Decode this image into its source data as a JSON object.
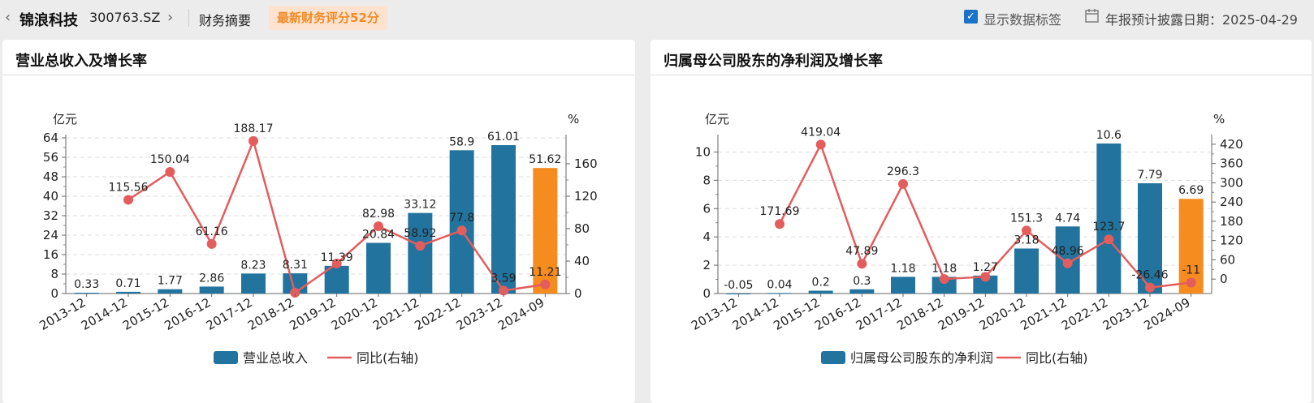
{
  "header": {
    "back_arrow": "‹",
    "stock_name": "锦浪科技",
    "stock_code": "300763.SZ",
    "forward_arrow": "›",
    "summary_tab": "财务摘要",
    "score_badge": "最新财务评分52分",
    "show_labels": "显示数据标签",
    "show_labels_checked": true,
    "report_date": "年报预计披露日期：2025-04-29"
  },
  "colors": {
    "bar": "#22739e",
    "bar_last": "#f68b1f",
    "line": "#e35d5d",
    "accent": "#1a73c8"
  },
  "panels": [
    {
      "title": "营业总收入及增长率"
    },
    {
      "title": "归属母公司股东的净利润及增长率"
    }
  ],
  "chart_data": [
    {
      "type": "bar",
      "title": "营业总收入及增长率",
      "left_unit": "亿元",
      "right_unit": "%",
      "categories": [
        "2013-12",
        "2014-12",
        "2015-12",
        "2016-12",
        "2017-12",
        "2018-12",
        "2019-12",
        "2020-12",
        "2021-12",
        "2022-12",
        "2023-12",
        "2024-09"
      ],
      "series": [
        {
          "name": "营业总收入",
          "type": "bar",
          "axis": "left",
          "values": [
            0.33,
            0.71,
            1.77,
            2.86,
            8.23,
            8.31,
            11.39,
            20.84,
            33.12,
            58.9,
            61.01,
            51.62
          ],
          "labels": [
            "0.33",
            "0.71",
            "1.77",
            "2.86",
            "8.23",
            "8.31",
            "11.39",
            "20.84",
            "33.12",
            "58.9",
            "61.01",
            "51.62"
          ]
        },
        {
          "name": "同比(右轴)",
          "type": "line",
          "axis": "right",
          "values": [
            null,
            115.56,
            150.04,
            61.16,
            188.17,
            0.97,
            37.06,
            82.98,
            58.92,
            77.8,
            3.59,
            11.21
          ],
          "labels": [
            "",
            "115.56",
            "150.04",
            "61.16",
            "188.17",
            "",
            "",
            "82.98",
            "58.92",
            "77.8",
            "3.59",
            "11.21"
          ]
        }
      ],
      "y_left": {
        "min": 0,
        "max": 64,
        "ticks": [
          0,
          8,
          16,
          24,
          32,
          40,
          48,
          56,
          64
        ]
      },
      "y_right": {
        "min": 0,
        "max": 192,
        "ticks": [
          0,
          40,
          80,
          120,
          160
        ]
      },
      "grid": true,
      "legend_position": "bottom"
    },
    {
      "type": "bar",
      "title": "归属母公司股东的净利润及增长率",
      "left_unit": "亿元",
      "right_unit": "%",
      "categories": [
        "2013-12",
        "2014-12",
        "2015-12",
        "2016-12",
        "2017-12",
        "2018-12",
        "2019-12",
        "2020-12",
        "2021-12",
        "2022-12",
        "2023-12",
        "2024-09"
      ],
      "series": [
        {
          "name": "归属母公司股东的净利润",
          "type": "bar",
          "axis": "left",
          "values": [
            -0.05,
            0.04,
            0.2,
            0.3,
            1.18,
            1.18,
            1.27,
            3.18,
            4.74,
            10.6,
            7.79,
            6.69
          ],
          "labels": [
            "-0.05",
            "0.04",
            "0.2",
            "0.3",
            "1.18",
            "1.18",
            "1.27",
            "3.18",
            "4.74",
            "10.6",
            "7.79",
            "6.69"
          ]
        },
        {
          "name": "同比(右轴)",
          "type": "line",
          "axis": "right",
          "values": [
            null,
            171.69,
            419.04,
            47.89,
            296.3,
            0.15,
            7.21,
            151.3,
            48.96,
            123.7,
            -26.46,
            -11
          ],
          "labels": [
            "",
            "171.69",
            "419.04",
            "47.89",
            "296.3",
            "",
            "",
            "151.3",
            "48.96",
            "123.7",
            "-26.46",
            "-11"
          ]
        }
      ],
      "y_left": {
        "min": 0,
        "max": 11,
        "ticks": [
          0,
          2,
          4,
          6,
          8,
          10
        ]
      },
      "y_right": {
        "min": -45,
        "max": 440,
        "ticks": [
          0,
          60,
          120,
          180,
          240,
          300,
          360,
          420
        ]
      },
      "grid": true,
      "legend_position": "bottom"
    }
  ]
}
